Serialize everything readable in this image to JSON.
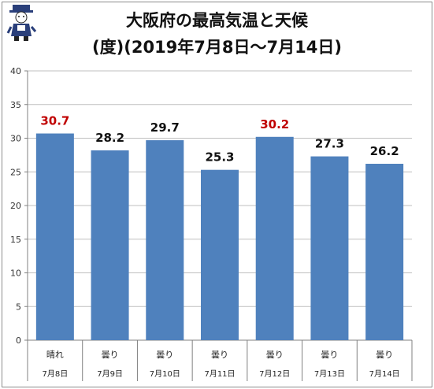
{
  "title_lines": [
    "大阪府の最高気温と天候",
    "(度)(2019年7月8日〜7月14日)"
  ],
  "colors": {
    "bar": "#4f81bd",
    "highlight_label": "#c00000",
    "label": "#111111",
    "grid": "#bfbfbf"
  },
  "chart_data": {
    "type": "bar",
    "title": "大阪府の最高気温と天候",
    "subtitle": "(度)(2019年7月8日〜7月14日)",
    "categories": [
      "7月8日",
      "7月9日",
      "7月10日",
      "7月11日",
      "7月12日",
      "7月13日",
      "7月14日"
    ],
    "weather": [
      "晴れ",
      "曇り",
      "曇り",
      "曇り",
      "曇り",
      "曇り",
      "曇り"
    ],
    "values": [
      30.7,
      28.2,
      29.7,
      25.3,
      30.2,
      27.3,
      26.2
    ],
    "highlight": [
      true,
      false,
      false,
      false,
      true,
      false,
      false
    ],
    "value_labels": [
      "30.7",
      "28.2",
      "29.7",
      "25.3",
      "30.2",
      "27.3",
      "26.2"
    ],
    "ylim": [
      0,
      40
    ],
    "yticks": [
      0,
      5,
      10,
      15,
      20,
      25,
      30,
      35,
      40
    ],
    "grid": true,
    "xlabel": "",
    "ylabel": ""
  }
}
